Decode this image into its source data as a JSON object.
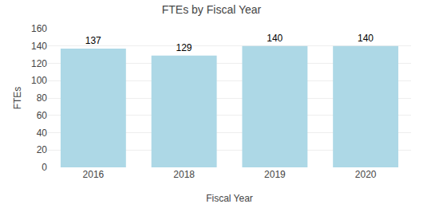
{
  "chart_data": {
    "type": "bar",
    "title": "FTEs by Fiscal Year",
    "xlabel": "Fiscal Year",
    "ylabel": "FTEs",
    "categories": [
      "2016",
      "2018",
      "2019",
      "2020"
    ],
    "values": [
      137,
      129,
      140,
      140
    ],
    "color": "#add8e6",
    "ylim": [
      0,
      160
    ],
    "yticks": [
      0,
      20,
      40,
      60,
      80,
      100,
      120,
      140,
      160
    ],
    "grid": true,
    "data_labels": true
  }
}
